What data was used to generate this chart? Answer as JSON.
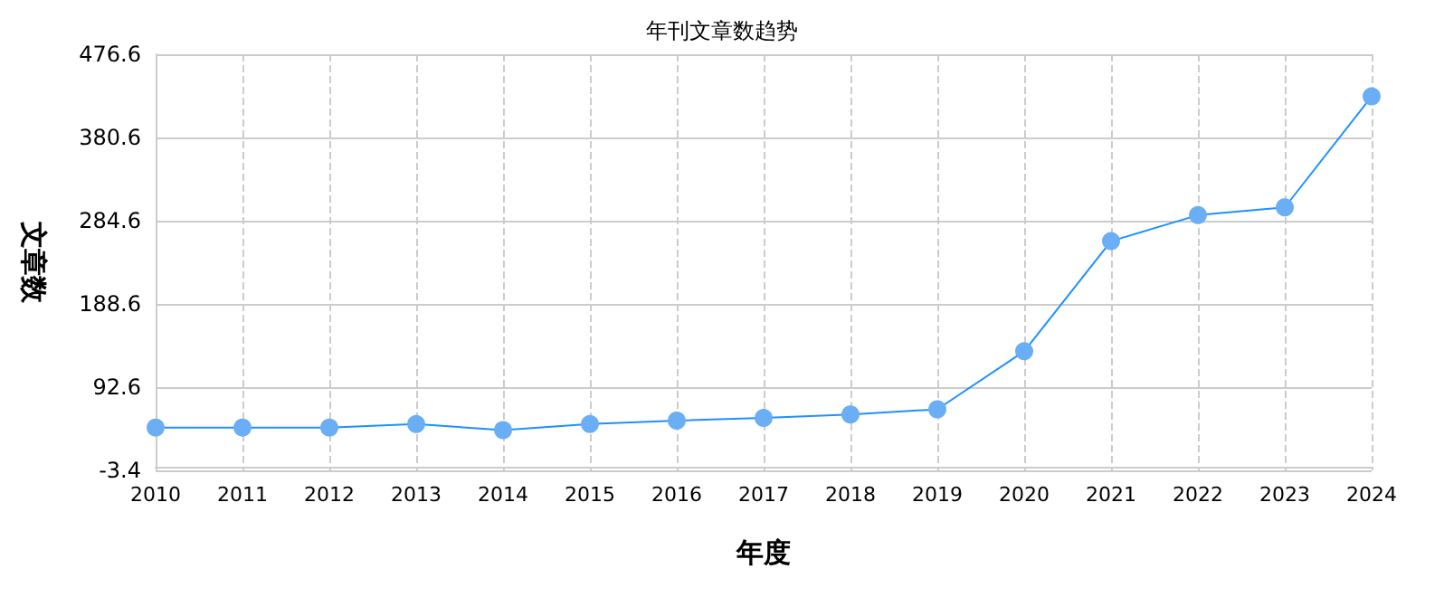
{
  "chart_data": {
    "type": "line",
    "title": "年刊文章数趋势",
    "xlabel": "年度",
    "ylabel": "文章数",
    "categories": [
      "2010",
      "2011",
      "2012",
      "2013",
      "2014",
      "2015",
      "2016",
      "2017",
      "2018",
      "2019",
      "2020",
      "2021",
      "2022",
      "2023",
      "2024"
    ],
    "series": [
      {
        "color": "#1e90ff",
        "values": [
          46,
          46,
          46,
          50,
          43,
          50,
          54,
          57,
          61,
          67,
          134,
          261,
          291,
          300,
          428
        ]
      }
    ],
    "ylim": [
      -3.4,
      476.6
    ],
    "yticks": [
      -3.4,
      92.6,
      188.6,
      284.6,
      380.6,
      476.6
    ],
    "grid": true,
    "marker": "circle",
    "line_style": "solid"
  }
}
